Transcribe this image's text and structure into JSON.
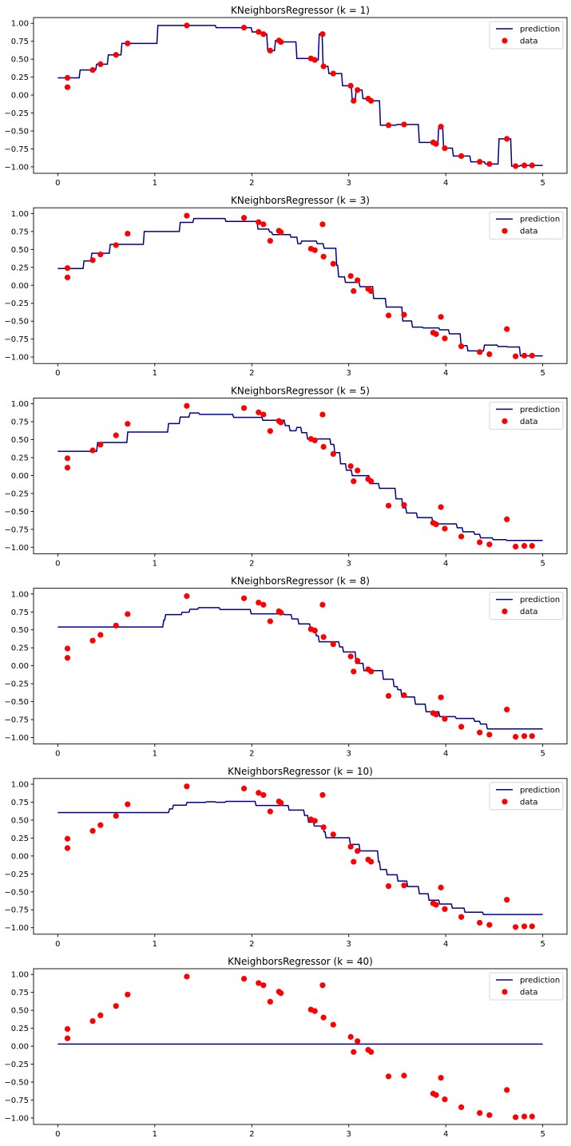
{
  "chart_data": {
    "type": "line",
    "figure": "KNN regression, six subplots stacked vertically",
    "xlim": [
      -0.25,
      5.25
    ],
    "ylim": [
      -1.09,
      1.08
    ],
    "x_ticks": [
      0,
      1,
      2,
      3,
      4,
      5
    ],
    "x_tick_labels": [
      "0",
      "1",
      "2",
      "3",
      "4",
      "5"
    ],
    "y_ticks": [
      1.0,
      0.75,
      0.5,
      0.25,
      0.0,
      -0.25,
      -0.5,
      -0.75,
      -1.0
    ],
    "y_tick_labels": [
      "1.00",
      "0.75",
      "0.50",
      "0.25",
      "0.00",
      "−0.25",
      "−0.50",
      "−0.75",
      "−1.00"
    ],
    "grid": false,
    "legend": {
      "placement": "top-right",
      "entries": [
        "prediction",
        "data"
      ]
    },
    "colors": {
      "prediction": "#00008b",
      "data": "#ff0000"
    },
    "prediction_x_range": [
      0,
      5
    ],
    "prediction_samples": 500,
    "data": {
      "x": [
        0.1,
        0.1,
        0.36,
        0.44,
        0.6,
        0.72,
        1.33,
        1.92,
        2.07,
        2.12,
        2.19,
        2.28,
        2.3,
        2.61,
        2.65,
        2.73,
        2.74,
        2.84,
        3.02,
        3.05,
        3.09,
        3.2,
        3.23,
        3.41,
        3.57,
        3.87,
        3.9,
        3.95,
        3.99,
        4.16,
        4.35,
        4.45,
        4.63,
        4.72,
        4.81,
        4.89
      ],
      "y": [
        0.24,
        0.11,
        0.35,
        0.43,
        0.56,
        0.72,
        0.97,
        0.94,
        0.88,
        0.85,
        0.62,
        0.76,
        0.74,
        0.51,
        0.49,
        0.85,
        0.4,
        0.3,
        0.13,
        -0.08,
        0.07,
        -0.05,
        -0.08,
        -0.42,
        -0.41,
        -0.66,
        -0.68,
        -0.44,
        -0.74,
        -0.85,
        -0.93,
        -0.96,
        -0.61,
        -0.99,
        -0.98,
        -0.98
      ]
    },
    "panels": [
      {
        "title": "KNeighborsRegressor (k = 1)",
        "k": 1
      },
      {
        "title": "KNeighborsRegressor (k = 3)",
        "k": 3
      },
      {
        "title": "KNeighborsRegressor (k = 5)",
        "k": 5
      },
      {
        "title": "KNeighborsRegressor (k = 8)",
        "k": 8
      },
      {
        "title": "KNeighborsRegressor (k = 10)",
        "k": 10
      },
      {
        "title": "KNeighborsRegressor (k = 40)",
        "k": 40
      }
    ]
  }
}
